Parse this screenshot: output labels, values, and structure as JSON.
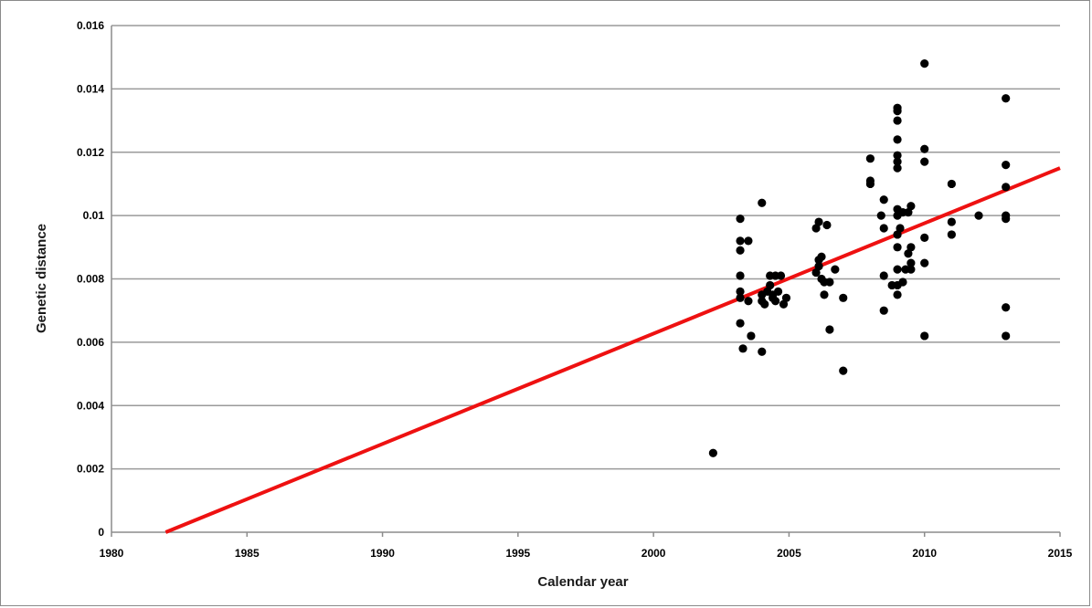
{
  "chart_data": {
    "type": "scatter",
    "title": "",
    "xlabel": "Calendar year",
    "ylabel": "Genetic distance",
    "xlim": [
      1980,
      2015
    ],
    "ylim": [
      0,
      0.016
    ],
    "x_ticks": [
      "1980",
      "1985",
      "1990",
      "1995",
      "2000",
      "2005",
      "2010",
      "2015"
    ],
    "y_ticks": [
      "0",
      "0.002",
      "0.004",
      "0.006",
      "0.008",
      "0.01",
      "0.012",
      "0.014",
      "0.016"
    ],
    "grid": "horizontal",
    "colors": {
      "points": "#000000",
      "trend": "#ee1111",
      "grid": "#9a9a9a"
    },
    "trendline": {
      "x": [
        1982,
        2015
      ],
      "y": [
        0,
        0.0115
      ]
    },
    "points": [
      [
        2002.2,
        0.0025
      ],
      [
        2003.2,
        0.0099
      ],
      [
        2003.2,
        0.0092
      ],
      [
        2003.2,
        0.0089
      ],
      [
        2003.2,
        0.0081
      ],
      [
        2003.2,
        0.0076
      ],
      [
        2003.2,
        0.0074
      ],
      [
        2003.2,
        0.0066
      ],
      [
        2003.5,
        0.0092
      ],
      [
        2003.5,
        0.0073
      ],
      [
        2003.3,
        0.0058
      ],
      [
        2003.6,
        0.0062
      ],
      [
        2004.0,
        0.0104
      ],
      [
        2004.0,
        0.0057
      ],
      [
        2004.0,
        0.0073
      ],
      [
        2004.0,
        0.0075
      ],
      [
        2004.1,
        0.0072
      ],
      [
        2004.2,
        0.0076
      ],
      [
        2004.3,
        0.0081
      ],
      [
        2004.3,
        0.0078
      ],
      [
        2004.4,
        0.0074
      ],
      [
        2004.5,
        0.0081
      ],
      [
        2004.5,
        0.0073
      ],
      [
        2004.6,
        0.0076
      ],
      [
        2004.7,
        0.0081
      ],
      [
        2004.8,
        0.0072
      ],
      [
        2004.9,
        0.0074
      ],
      [
        2004.4,
        0.0075
      ],
      [
        2006.0,
        0.0096
      ],
      [
        2006.1,
        0.0098
      ],
      [
        2006.2,
        0.0087
      ],
      [
        2006.1,
        0.0086
      ],
      [
        2006.1,
        0.0084
      ],
      [
        2006.0,
        0.0082
      ],
      [
        2006.2,
        0.008
      ],
      [
        2006.3,
        0.0079
      ],
      [
        2006.3,
        0.0075
      ],
      [
        2006.4,
        0.0097
      ],
      [
        2006.5,
        0.0064
      ],
      [
        2006.5,
        0.0079
      ],
      [
        2006.7,
        0.0083
      ],
      [
        2007.0,
        0.0074
      ],
      [
        2007.0,
        0.0051
      ],
      [
        2008.0,
        0.0118
      ],
      [
        2008.0,
        0.0111
      ],
      [
        2008.0,
        0.011
      ],
      [
        2008.4,
        0.01
      ],
      [
        2008.5,
        0.0096
      ],
      [
        2008.5,
        0.0105
      ],
      [
        2008.5,
        0.0081
      ],
      [
        2008.5,
        0.007
      ],
      [
        2008.8,
        0.0078
      ],
      [
        2009.0,
        0.0134
      ],
      [
        2009.0,
        0.0133
      ],
      [
        2009.0,
        0.013
      ],
      [
        2009.0,
        0.0124
      ],
      [
        2009.0,
        0.0119
      ],
      [
        2009.0,
        0.0117
      ],
      [
        2009.0,
        0.0115
      ],
      [
        2009.0,
        0.0102
      ],
      [
        2009.0,
        0.01
      ],
      [
        2009.0,
        0.0094
      ],
      [
        2009.0,
        0.009
      ],
      [
        2009.0,
        0.0083
      ],
      [
        2009.0,
        0.0078
      ],
      [
        2009.0,
        0.0075
      ],
      [
        2009.1,
        0.0096
      ],
      [
        2009.2,
        0.0101
      ],
      [
        2009.2,
        0.0079
      ],
      [
        2009.3,
        0.0083
      ],
      [
        2009.4,
        0.0088
      ],
      [
        2009.4,
        0.0101
      ],
      [
        2009.5,
        0.0103
      ],
      [
        2009.5,
        0.0085
      ],
      [
        2009.5,
        0.0083
      ],
      [
        2009.5,
        0.009
      ],
      [
        2010.0,
        0.0148
      ],
      [
        2010.0,
        0.0121
      ],
      [
        2010.0,
        0.0117
      ],
      [
        2010.0,
        0.0093
      ],
      [
        2010.0,
        0.0085
      ],
      [
        2010.0,
        0.0062
      ],
      [
        2011.0,
        0.011
      ],
      [
        2011.0,
        0.0098
      ],
      [
        2011.0,
        0.0094
      ],
      [
        2012.0,
        0.01
      ],
      [
        2013.0,
        0.0137
      ],
      [
        2013.0,
        0.0116
      ],
      [
        2013.0,
        0.0109
      ],
      [
        2013.0,
        0.01
      ],
      [
        2013.0,
        0.0099
      ],
      [
        2013.0,
        0.0071
      ],
      [
        2013.0,
        0.0062
      ]
    ]
  }
}
